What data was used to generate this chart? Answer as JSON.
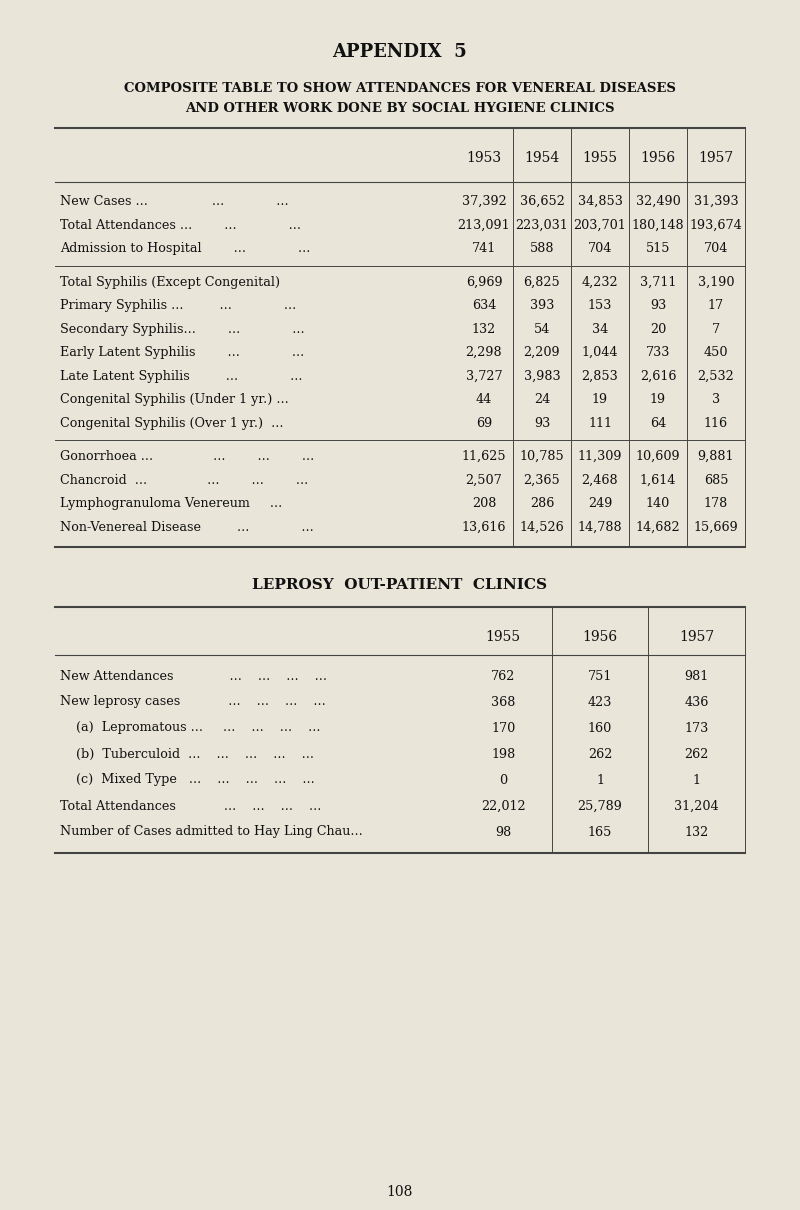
{
  "page_title": "APPENDIX  5",
  "table1_title1": "COMPOSITE TABLE TO SHOW ATTENDANCES FOR VENEREAL DISEASES",
  "table1_title2": "AND OTHER WORK DONE BY SOCIAL HYGIENE CLINICS",
  "table1_years": [
    "1953",
    "1954",
    "1955",
    "1956",
    "1957"
  ],
  "table1_rows": [
    {
      "label": "New Cases ...                ...             ...",
      "values": [
        "37,392",
        "36,652",
        "34,853",
        "32,490",
        "31,393"
      ],
      "group": 0
    },
    {
      "label": "Total Attendances ...        ...             ...",
      "values": [
        "213,091",
        "223,031",
        "203,701",
        "180,148",
        "193,674"
      ],
      "group": 0
    },
    {
      "label": "Admission to Hospital        ...             ...",
      "values": [
        "741",
        "588",
        "704",
        "515",
        "704"
      ],
      "group": 0
    },
    {
      "label": "Total Syphilis (Except Congenital)",
      "values": [
        "6,969",
        "6,825",
        "4,232",
        "3,711",
        "3,190"
      ],
      "group": 1
    },
    {
      "label": "Primary Syphilis ...         ...             ...",
      "values": [
        "634",
        "393",
        "153",
        "93",
        "17"
      ],
      "group": 1
    },
    {
      "label": "Secondary Syphilis...        ...             ...",
      "values": [
        "132",
        "54",
        "34",
        "20",
        "7"
      ],
      "group": 1
    },
    {
      "label": "Early Latent Syphilis        ...             ...",
      "values": [
        "2,298",
        "2,209",
        "1,044",
        "733",
        "450"
      ],
      "group": 1
    },
    {
      "label": "Late Latent Syphilis         ...             ...",
      "values": [
        "3,727",
        "3,983",
        "2,853",
        "2,616",
        "2,532"
      ],
      "group": 1
    },
    {
      "label": "Congenital Syphilis (Under 1 yr.) ...",
      "values": [
        "44",
        "24",
        "19",
        "19",
        "3"
      ],
      "group": 1
    },
    {
      "label": "Congenital Syphilis (Over 1 yr.)  ...",
      "values": [
        "69",
        "93",
        "111",
        "64",
        "116"
      ],
      "group": 1
    },
    {
      "label": "Gonorrhoea ...               ...        ...        ...",
      "values": [
        "11,625",
        "10,785",
        "11,309",
        "10,609",
        "9,881"
      ],
      "group": 2
    },
    {
      "label": "Chancroid  ...               ...        ...        ...",
      "values": [
        "2,507",
        "2,365",
        "2,468",
        "1,614",
        "685"
      ],
      "group": 2
    },
    {
      "label": "Lymphogranuloma Venereum     ...",
      "values": [
        "208",
        "286",
        "249",
        "140",
        "178"
      ],
      "group": 2
    },
    {
      "label": "Non-Venereal Disease         ...             ...",
      "values": [
        "13,616",
        "14,526",
        "14,788",
        "14,682",
        "15,669"
      ],
      "group": 2
    }
  ],
  "table2_title": "LEPROSY  OUT-PATIENT  CLINICS",
  "table2_years": [
    "1955",
    "1956",
    "1957"
  ],
  "table2_rows": [
    {
      "label": "New Attendances              ...    ...    ...    ...",
      "values": [
        "762",
        "751",
        "981"
      ]
    },
    {
      "label": "New leprosy cases            ...    ...    ...    ...",
      "values": [
        "368",
        "423",
        "436"
      ]
    },
    {
      "label": "    (a)  Lepromatous ...     ...    ...    ...    ...",
      "values": [
        "170",
        "160",
        "173"
      ]
    },
    {
      "label": "    (b)  Tuberculoid  ...    ...    ...    ...    ...",
      "values": [
        "198",
        "262",
        "262"
      ]
    },
    {
      "label": "    (c)  Mixed Type   ...    ...    ...    ...    ...",
      "values": [
        "0",
        "1",
        "1"
      ]
    },
    {
      "label": "Total Attendances            ...    ...    ...    ...",
      "values": [
        "22,012",
        "25,789",
        "31,204"
      ]
    },
    {
      "label": "Number of Cases admitted to Hay Ling Chau...",
      "values": [
        "98",
        "165",
        "132"
      ]
    }
  ],
  "page_number": "108",
  "bg_color": "#e9e5d9",
  "text_color": "#111111",
  "line_color": "#444444"
}
